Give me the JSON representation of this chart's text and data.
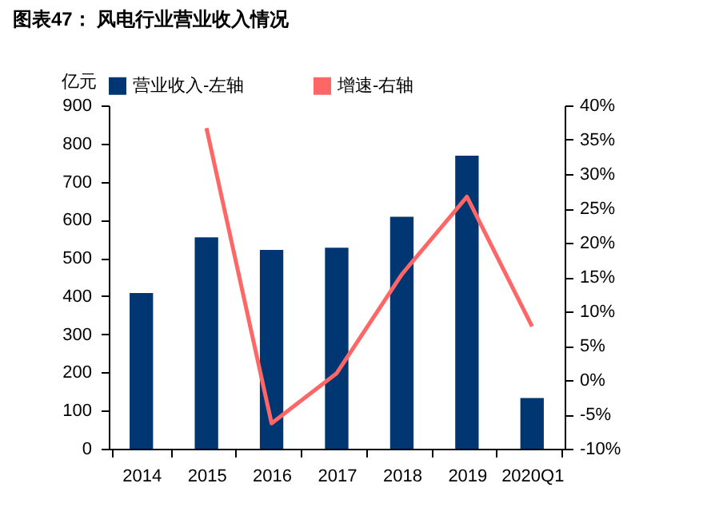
{
  "chart_data": {
    "type": "bar",
    "title": "图表47：  风电行业营业收入情况",
    "ylabel": "亿元",
    "categories": [
      "2014",
      "2015",
      "2016",
      "2017",
      "2018",
      "2019",
      "2020Q1"
    ],
    "series": [
      {
        "name": "营业收入-左轴",
        "color": "#003671",
        "values": [
          408,
          554,
          521,
          527,
          608,
          768,
          133
        ]
      },
      {
        "name": "增速-右轴",
        "type": "line",
        "axis": "y2",
        "color": "#ff6666",
        "values": [
          null,
          36.7,
          -6.3,
          1,
          15.4,
          26.7,
          7.8
        ]
      }
    ],
    "ylim": [
      0,
      900
    ],
    "yticks": [
      0,
      100,
      200,
      300,
      400,
      500,
      600,
      700,
      800,
      900
    ],
    "y2lim": [
      -10,
      40
    ],
    "y2ticks": [
      {
        "value": -10,
        "label": "-10%"
      },
      {
        "value": -5,
        "label": "-5%"
      },
      {
        "value": 0,
        "label": "0%"
      },
      {
        "value": 5,
        "label": "5%"
      },
      {
        "value": 10,
        "label": "10%"
      },
      {
        "value": 15,
        "label": "15%"
      },
      {
        "value": 20,
        "label": "20%"
      },
      {
        "value": 25,
        "label": "25%"
      },
      {
        "value": 30,
        "label": "30%"
      },
      {
        "value": 35,
        "label": "35%"
      },
      {
        "value": 40,
        "label": "40%"
      }
    ],
    "legend": "top",
    "grid": false
  }
}
